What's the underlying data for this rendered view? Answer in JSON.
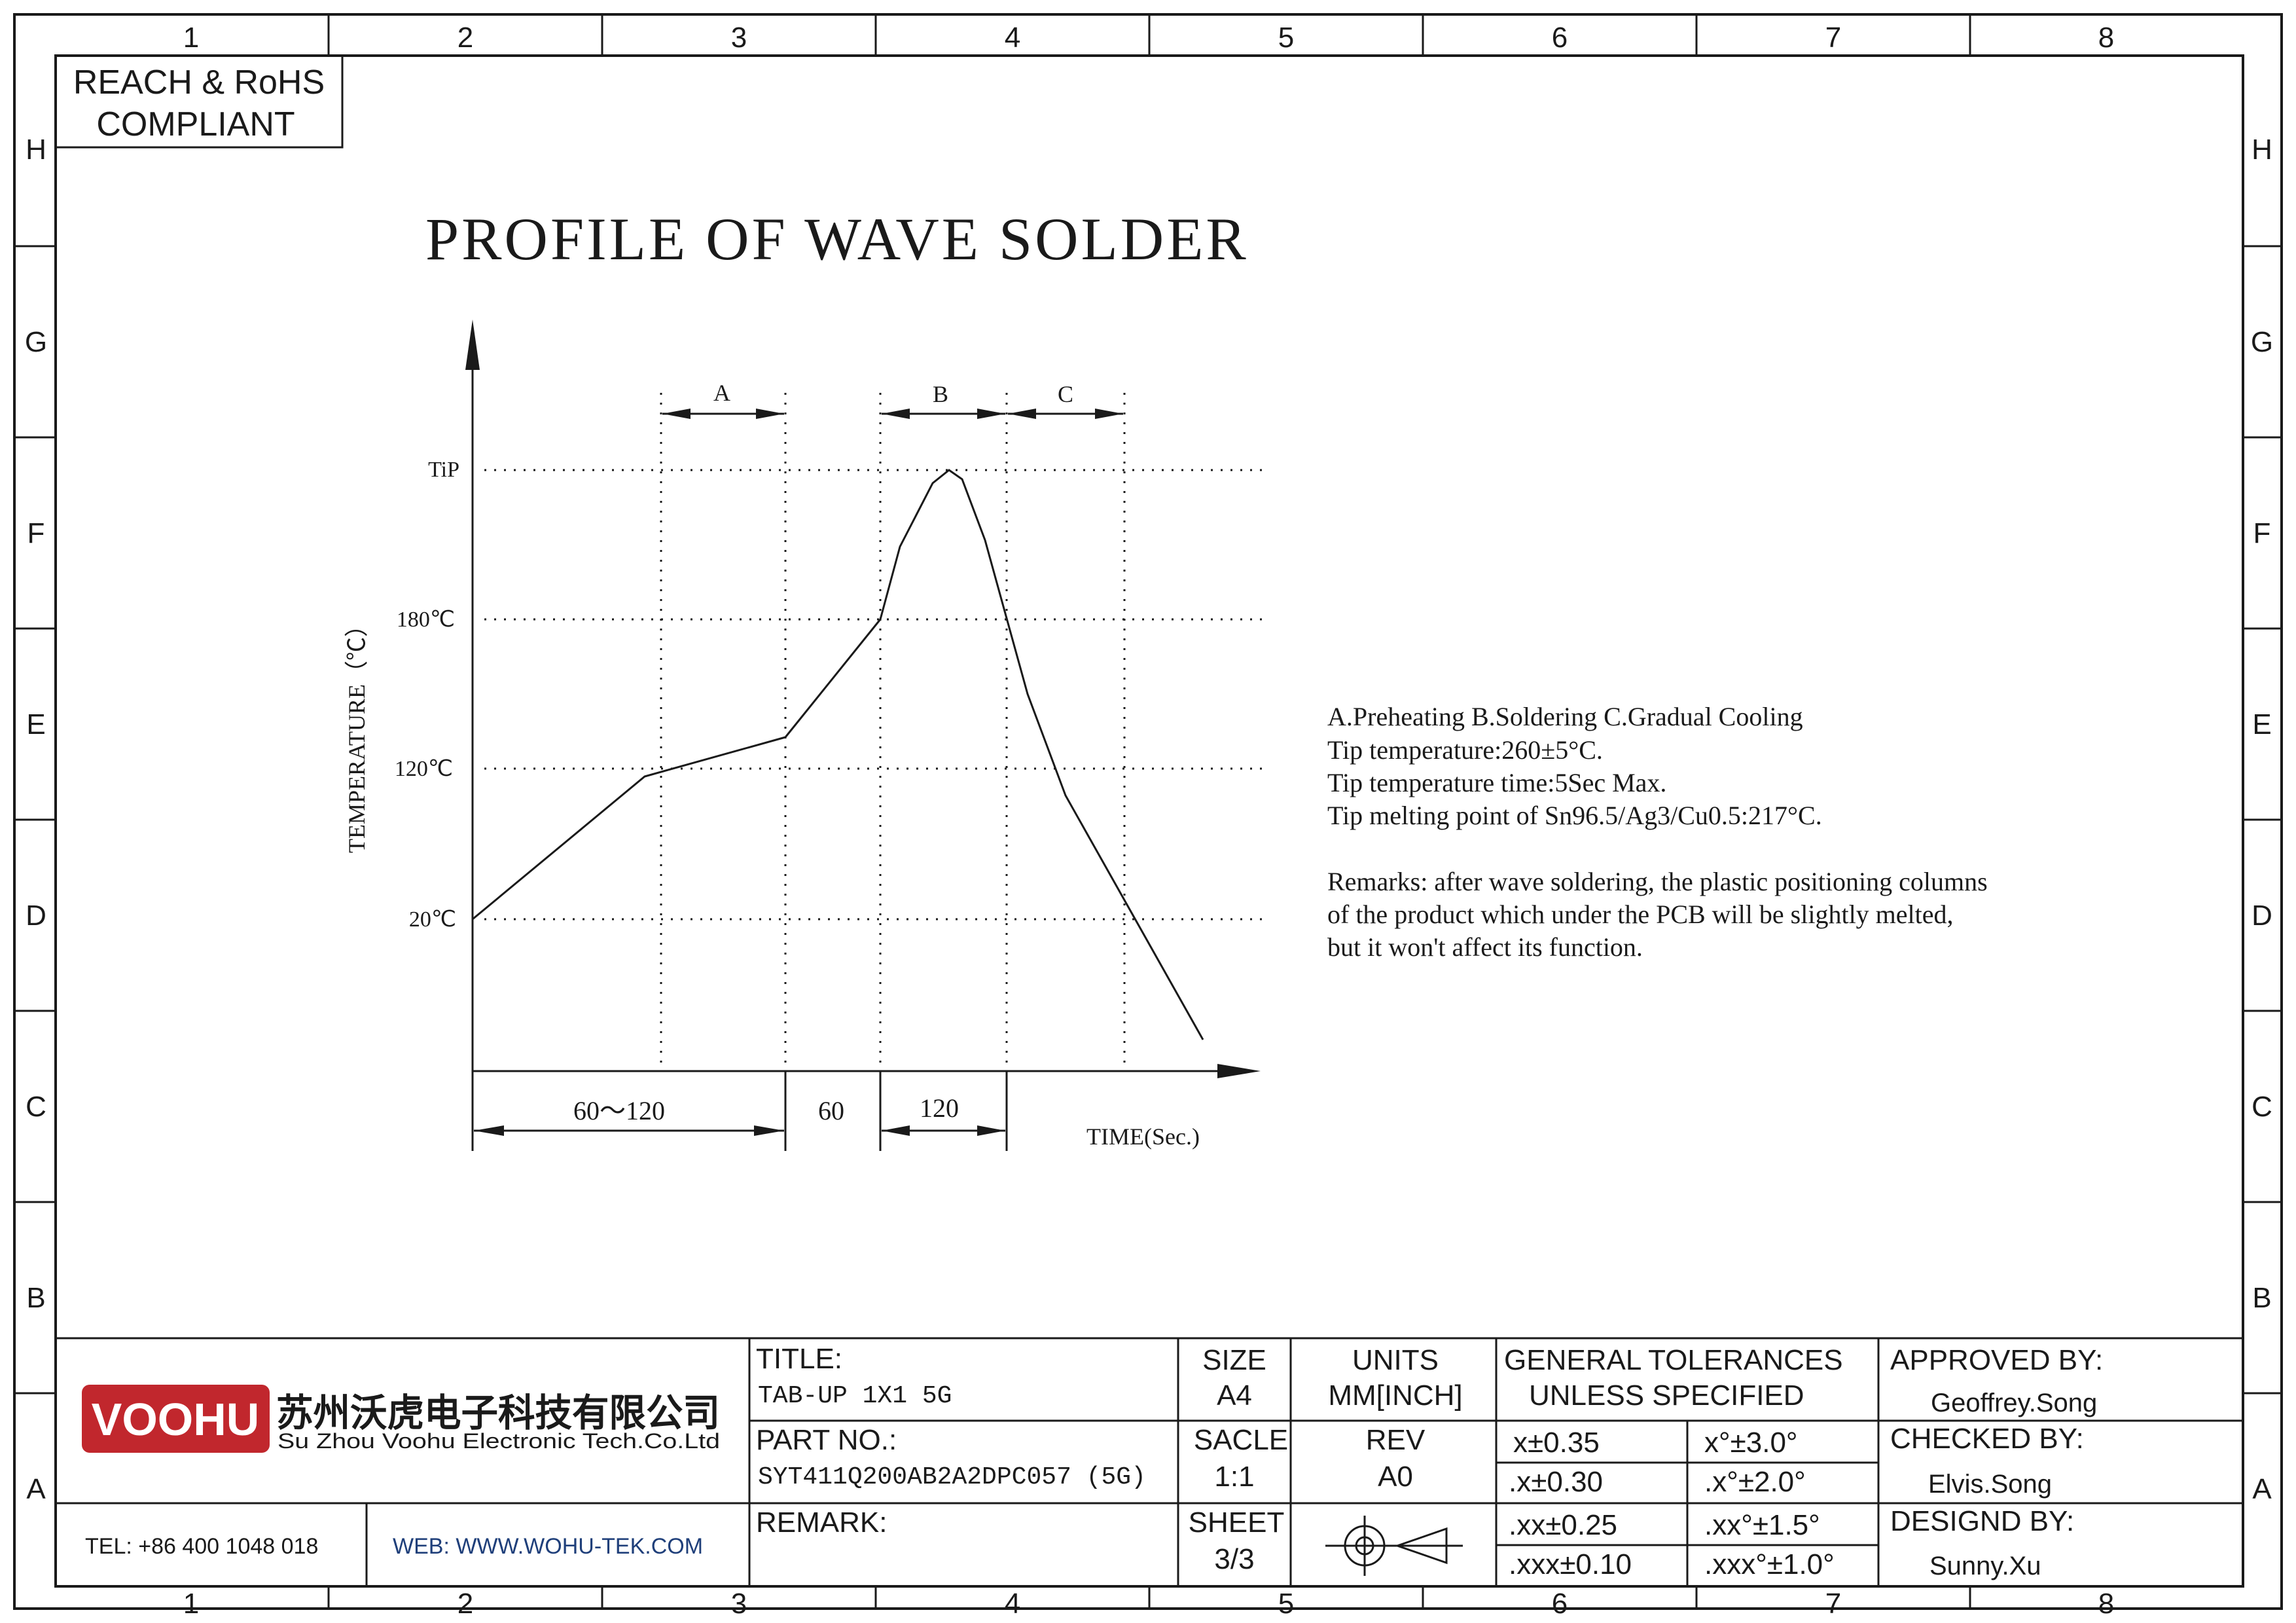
{
  "compliance": {
    "line1": "REACH & RoHS",
    "line2": "COMPLIANT"
  },
  "grid": {
    "columns": [
      "1",
      "2",
      "3",
      "4",
      "5",
      "6",
      "7",
      "8"
    ],
    "rows": [
      "H",
      "G",
      "F",
      "E",
      "D",
      "C",
      "B",
      "A"
    ]
  },
  "profile": {
    "title": "PROFILE OF WAVE SOLDER",
    "y_axis_label": "TEMPERATURE（℃）",
    "x_axis_label": "TIME(Sec.)",
    "y_ticks": [
      "TiP",
      "180℃",
      "120℃",
      "20℃"
    ],
    "zones": [
      "A",
      "B",
      "C"
    ],
    "durations": [
      "60～120",
      "60",
      "120"
    ]
  },
  "notes": {
    "lines": [
      "A.Preheating  B.Soldering  C.Gradual Cooling",
      "Tip temperature:260±5°C.",
      "Tip temperature time:5Sec Max.",
      "Tip melting point of Sn96.5/Ag3/Cu0.5:217°C."
    ],
    "remarks": [
      "Remarks: after wave soldering, the plastic positioning columns",
      "of the product  which under the PCB will be slightly melted,",
      "but it won't affect its function."
    ]
  },
  "title_block": {
    "company": {
      "logo_text": "VOOHU",
      "name_cn": "苏州沃虎电子科技有限公司",
      "name_en": "Su Zhou Voohu Electronic Tech.Co.Ltd",
      "tel": "TEL: +86 400 1048 018",
      "web": "WEB: WWW.WOHU-TEK.COM",
      "logo_color": "#c1272d",
      "web_color": "#1f3f7a"
    },
    "title_label": "TITLE:",
    "title_value": "TAB-UP 1X1 5G",
    "part_label": "PART NO.:",
    "part_value": "SYT411Q200AB2A2DPC057 (5G)",
    "remark_label": "REMARK:",
    "size_label": "SIZE",
    "size_value": "A4",
    "units_label": "UNITS",
    "units_value": "MM[INCH]",
    "scale_label": "SACLE",
    "scale_value": "1:1",
    "rev_label": "REV",
    "rev_value": "A0",
    "sheet_label": "SHEET",
    "sheet_value": "3/3",
    "projection_icon": "first-angle-projection-icon",
    "tolerances_line1": "GENERAL TOLERANCES",
    "tolerances_line2": "UNLESS SPECIFIED",
    "tolerances": [
      [
        "x±0.35",
        "x°±3.0°"
      ],
      [
        ".x±0.30",
        ".x°±2.0°"
      ],
      [
        ".xx±0.25",
        ".xx°±1.5°"
      ],
      [
        ".xxx±0.10",
        ".xxx°±1.0°"
      ]
    ],
    "approved_label": "APPROVED BY:",
    "approved_name": "Geoffrey.Song",
    "checked_label": "CHECKED BY:",
    "checked_name": "Elvis.Song",
    "designed_label": "DESIGND BY:",
    "designed_name": "Sunny.Xu"
  }
}
